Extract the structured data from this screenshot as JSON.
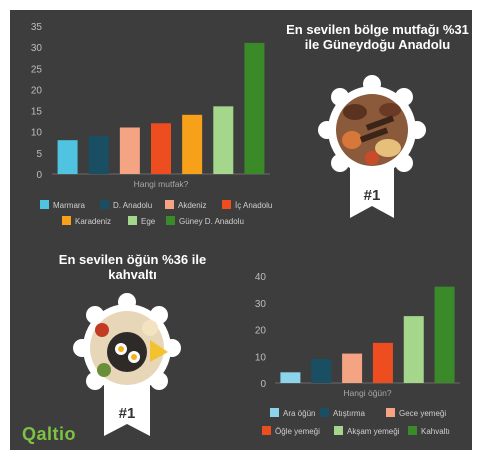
{
  "badge_text": "#1",
  "logo_text": "Qaltio",
  "chart_data": [
    {
      "type": "bar",
      "title": "En sevilen bölge mutfağı %31 ile Güneydoğu Anadolu",
      "xlabel": "Hangi mutfak?",
      "ylabel": "",
      "ylim": [
        0,
        35
      ],
      "yticks": [
        0,
        5,
        10,
        15,
        20,
        25,
        30,
        35
      ],
      "grid": false,
      "legend_position": "bottom",
      "categories": [
        "Marmara",
        "D. Anadolu",
        "Akdeniz",
        "İç Anadolu",
        "Karadeniz",
        "Ege",
        "Güney D. Anadolu"
      ],
      "values": [
        8,
        9,
        11,
        12,
        14,
        16,
        31
      ],
      "colors": [
        "#4fc3e0",
        "#1a4e63",
        "#f4a383",
        "#ee4d1f",
        "#f7a11a",
        "#a4d68c",
        "#3a8a2a"
      ]
    },
    {
      "type": "bar",
      "title": "En sevilen öğün %36 ile kahvaltı",
      "xlabel": "Hangi öğün?",
      "ylabel": "",
      "ylim": [
        0,
        40
      ],
      "yticks": [
        0,
        10,
        20,
        30,
        40
      ],
      "grid": false,
      "legend_position": "bottom",
      "categories": [
        "Ara öğün",
        "Atıştırma",
        "Gece yemeği",
        "Öğle yemeği",
        "Akşam yemeği",
        "Kahvaltı"
      ],
      "values": [
        4,
        9,
        11,
        15,
        25,
        36
      ],
      "colors": [
        "#8cd4ea",
        "#1a4e63",
        "#f4a383",
        "#ee4d1f",
        "#a4d68c",
        "#3a8a2a"
      ]
    }
  ]
}
